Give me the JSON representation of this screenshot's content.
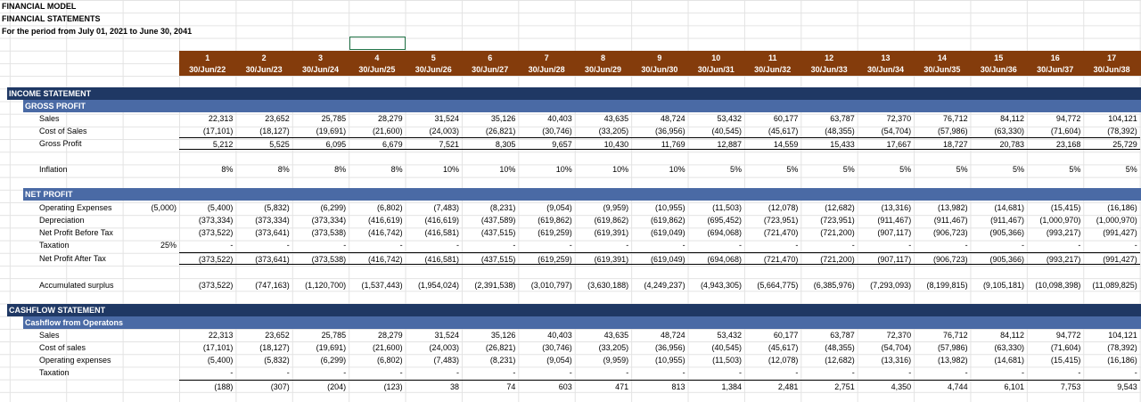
{
  "header": {
    "title": "FINANCIAL MODEL",
    "subtitle": "FINANCIAL STATEMENTS",
    "period": "For the period from July 01, 2021 to June 30, 2041"
  },
  "columns": {
    "numbers": [
      1,
      2,
      3,
      4,
      5,
      6,
      7,
      8,
      9,
      10,
      11,
      12,
      13,
      14,
      15,
      16,
      17
    ],
    "dates": [
      "30/Jun/22",
      "30/Jun/23",
      "30/Jun/24",
      "30/Jun/25",
      "30/Jun/26",
      "30/Jun/27",
      "30/Jun/28",
      "30/Jun/29",
      "30/Jun/30",
      "30/Jun/31",
      "30/Jun/32",
      "30/Jun/33",
      "30/Jun/34",
      "30/Jun/35",
      "30/Jun/36",
      "30/Jun/37",
      "30/Jun/38"
    ]
  },
  "sections": [
    {
      "title": "INCOME STATEMENT",
      "groups": [
        {
          "title": "GROSS PROFIT",
          "rows": [
            {
              "label": "Sales",
              "values": [
                "22,313",
                "23,652",
                "25,785",
                "28,279",
                "31,524",
                "35,126",
                "40,403",
                "43,635",
                "48,724",
                "53,432",
                "60,177",
                "63,787",
                "72,370",
                "76,712",
                "84,112",
                "94,772",
                "104,121"
              ]
            },
            {
              "label": "Cost of Sales",
              "values": [
                "(17,101)",
                "(18,127)",
                "(19,691)",
                "(21,600)",
                "(24,003)",
                "(26,821)",
                "(30,746)",
                "(33,205)",
                "(36,956)",
                "(40,545)",
                "(45,617)",
                "(48,355)",
                "(54,704)",
                "(57,986)",
                "(63,330)",
                "(71,604)",
                "(78,392)"
              ]
            },
            {
              "label": "Gross Profit",
              "values": [
                "5,212",
                "5,525",
                "6,095",
                "6,679",
                "7,521",
                "8,305",
                "9,657",
                "10,430",
                "11,769",
                "12,887",
                "14,559",
                "15,433",
                "17,667",
                "18,727",
                "20,783",
                "23,168",
                "25,729"
              ]
            },
            {
              "label": "Inflation",
              "values": [
                "8%",
                "8%",
                "8%",
                "8%",
                "10%",
                "10%",
                "10%",
                "10%",
                "10%",
                "5%",
                "5%",
                "5%",
                "5%",
                "5%",
                "5%",
                "5%",
                "5%"
              ]
            }
          ]
        },
        {
          "title": "NET PROFIT",
          "rows": [
            {
              "label": "Operating Expenses",
              "pre": "(5,000)",
              "values": [
                "(5,400)",
                "(5,832)",
                "(6,299)",
                "(6,802)",
                "(7,483)",
                "(8,231)",
                "(9,054)",
                "(9,959)",
                "(10,955)",
                "(11,503)",
                "(12,078)",
                "(12,682)",
                "(13,316)",
                "(13,982)",
                "(14,681)",
                "(15,415)",
                "(16,186)"
              ]
            },
            {
              "label": "Depreciation",
              "values": [
                "(373,334)",
                "(373,334)",
                "(373,334)",
                "(416,619)",
                "(416,619)",
                "(437,589)",
                "(619,862)",
                "(619,862)",
                "(619,862)",
                "(695,452)",
                "(723,951)",
                "(723,951)",
                "(911,467)",
                "(911,467)",
                "(911,467)",
                "(1,000,970)",
                "(1,000,970)"
              ]
            },
            {
              "label": "Net Profit Before Tax",
              "values": [
                "(373,522)",
                "(373,641)",
                "(373,538)",
                "(416,742)",
                "(416,581)",
                "(437,515)",
                "(619,259)",
                "(619,391)",
                "(619,049)",
                "(694,068)",
                "(721,470)",
                "(721,200)",
                "(907,117)",
                "(906,723)",
                "(905,366)",
                "(993,217)",
                "(991,427)"
              ]
            },
            {
              "label": "Taxation",
              "pre": "25%",
              "values": [
                "-",
                "-",
                "-",
                "-",
                "-",
                "-",
                "-",
                "-",
                "-",
                "-",
                "-",
                "-",
                "-",
                "-",
                "-",
                "-",
                "-"
              ]
            },
            {
              "label": "Net Profit After Tax",
              "values": [
                "(373,522)",
                "(373,641)",
                "(373,538)",
                "(416,742)",
                "(416,581)",
                "(437,515)",
                "(619,259)",
                "(619,391)",
                "(619,049)",
                "(694,068)",
                "(721,470)",
                "(721,200)",
                "(907,117)",
                "(906,723)",
                "(905,366)",
                "(993,217)",
                "(991,427)"
              ]
            },
            {
              "label": "Accumulated surplus",
              "values": [
                "(373,522)",
                "(747,163)",
                "(1,120,700)",
                "(1,537,443)",
                "(1,954,024)",
                "(2,391,538)",
                "(3,010,797)",
                "(3,630,188)",
                "(4,249,237)",
                "(4,943,305)",
                "(5,664,775)",
                "(6,385,976)",
                "(7,293,093)",
                "(8,199,815)",
                "(9,105,181)",
                "(10,098,398)",
                "(11,089,825)"
              ]
            }
          ]
        }
      ]
    },
    {
      "title": "CASHFLOW STATEMENT",
      "groups": [
        {
          "title": "Cashflow from Operatons",
          "rows": [
            {
              "label": "Sales",
              "values": [
                "22,313",
                "23,652",
                "25,785",
                "28,279",
                "31,524",
                "35,126",
                "40,403",
                "43,635",
                "48,724",
                "53,432",
                "60,177",
                "63,787",
                "72,370",
                "76,712",
                "84,112",
                "94,772",
                "104,121"
              ]
            },
            {
              "label": "Cost of sales",
              "values": [
                "(17,101)",
                "(18,127)",
                "(19,691)",
                "(21,600)",
                "(24,003)",
                "(26,821)",
                "(30,746)",
                "(33,205)",
                "(36,956)",
                "(40,545)",
                "(45,617)",
                "(48,355)",
                "(54,704)",
                "(57,986)",
                "(63,330)",
                "(71,604)",
                "(78,392)"
              ]
            },
            {
              "label": "Operating expenses",
              "values": [
                "(5,400)",
                "(5,832)",
                "(6,299)",
                "(6,802)",
                "(7,483)",
                "(8,231)",
                "(9,054)",
                "(9,959)",
                "(10,955)",
                "(11,503)",
                "(12,078)",
                "(12,682)",
                "(13,316)",
                "(13,982)",
                "(14,681)",
                "(15,415)",
                "(16,186)"
              ]
            },
            {
              "label": "Taxation",
              "values": [
                "-",
                "-",
                "-",
                "-",
                "-",
                "-",
                "-",
                "-",
                "-",
                "-",
                "-",
                "-",
                "-",
                "-",
                "-",
                "-",
                "-"
              ]
            },
            {
              "values": [
                "(188)",
                "(307)",
                "(204)",
                "(123)",
                "38",
                "74",
                "603",
                "471",
                "813",
                "1,384",
                "2,481",
                "2,751",
                "4,350",
                "4,744",
                "6,101",
                "7,753",
                "9,543"
              ]
            }
          ]
        }
      ]
    }
  ]
}
